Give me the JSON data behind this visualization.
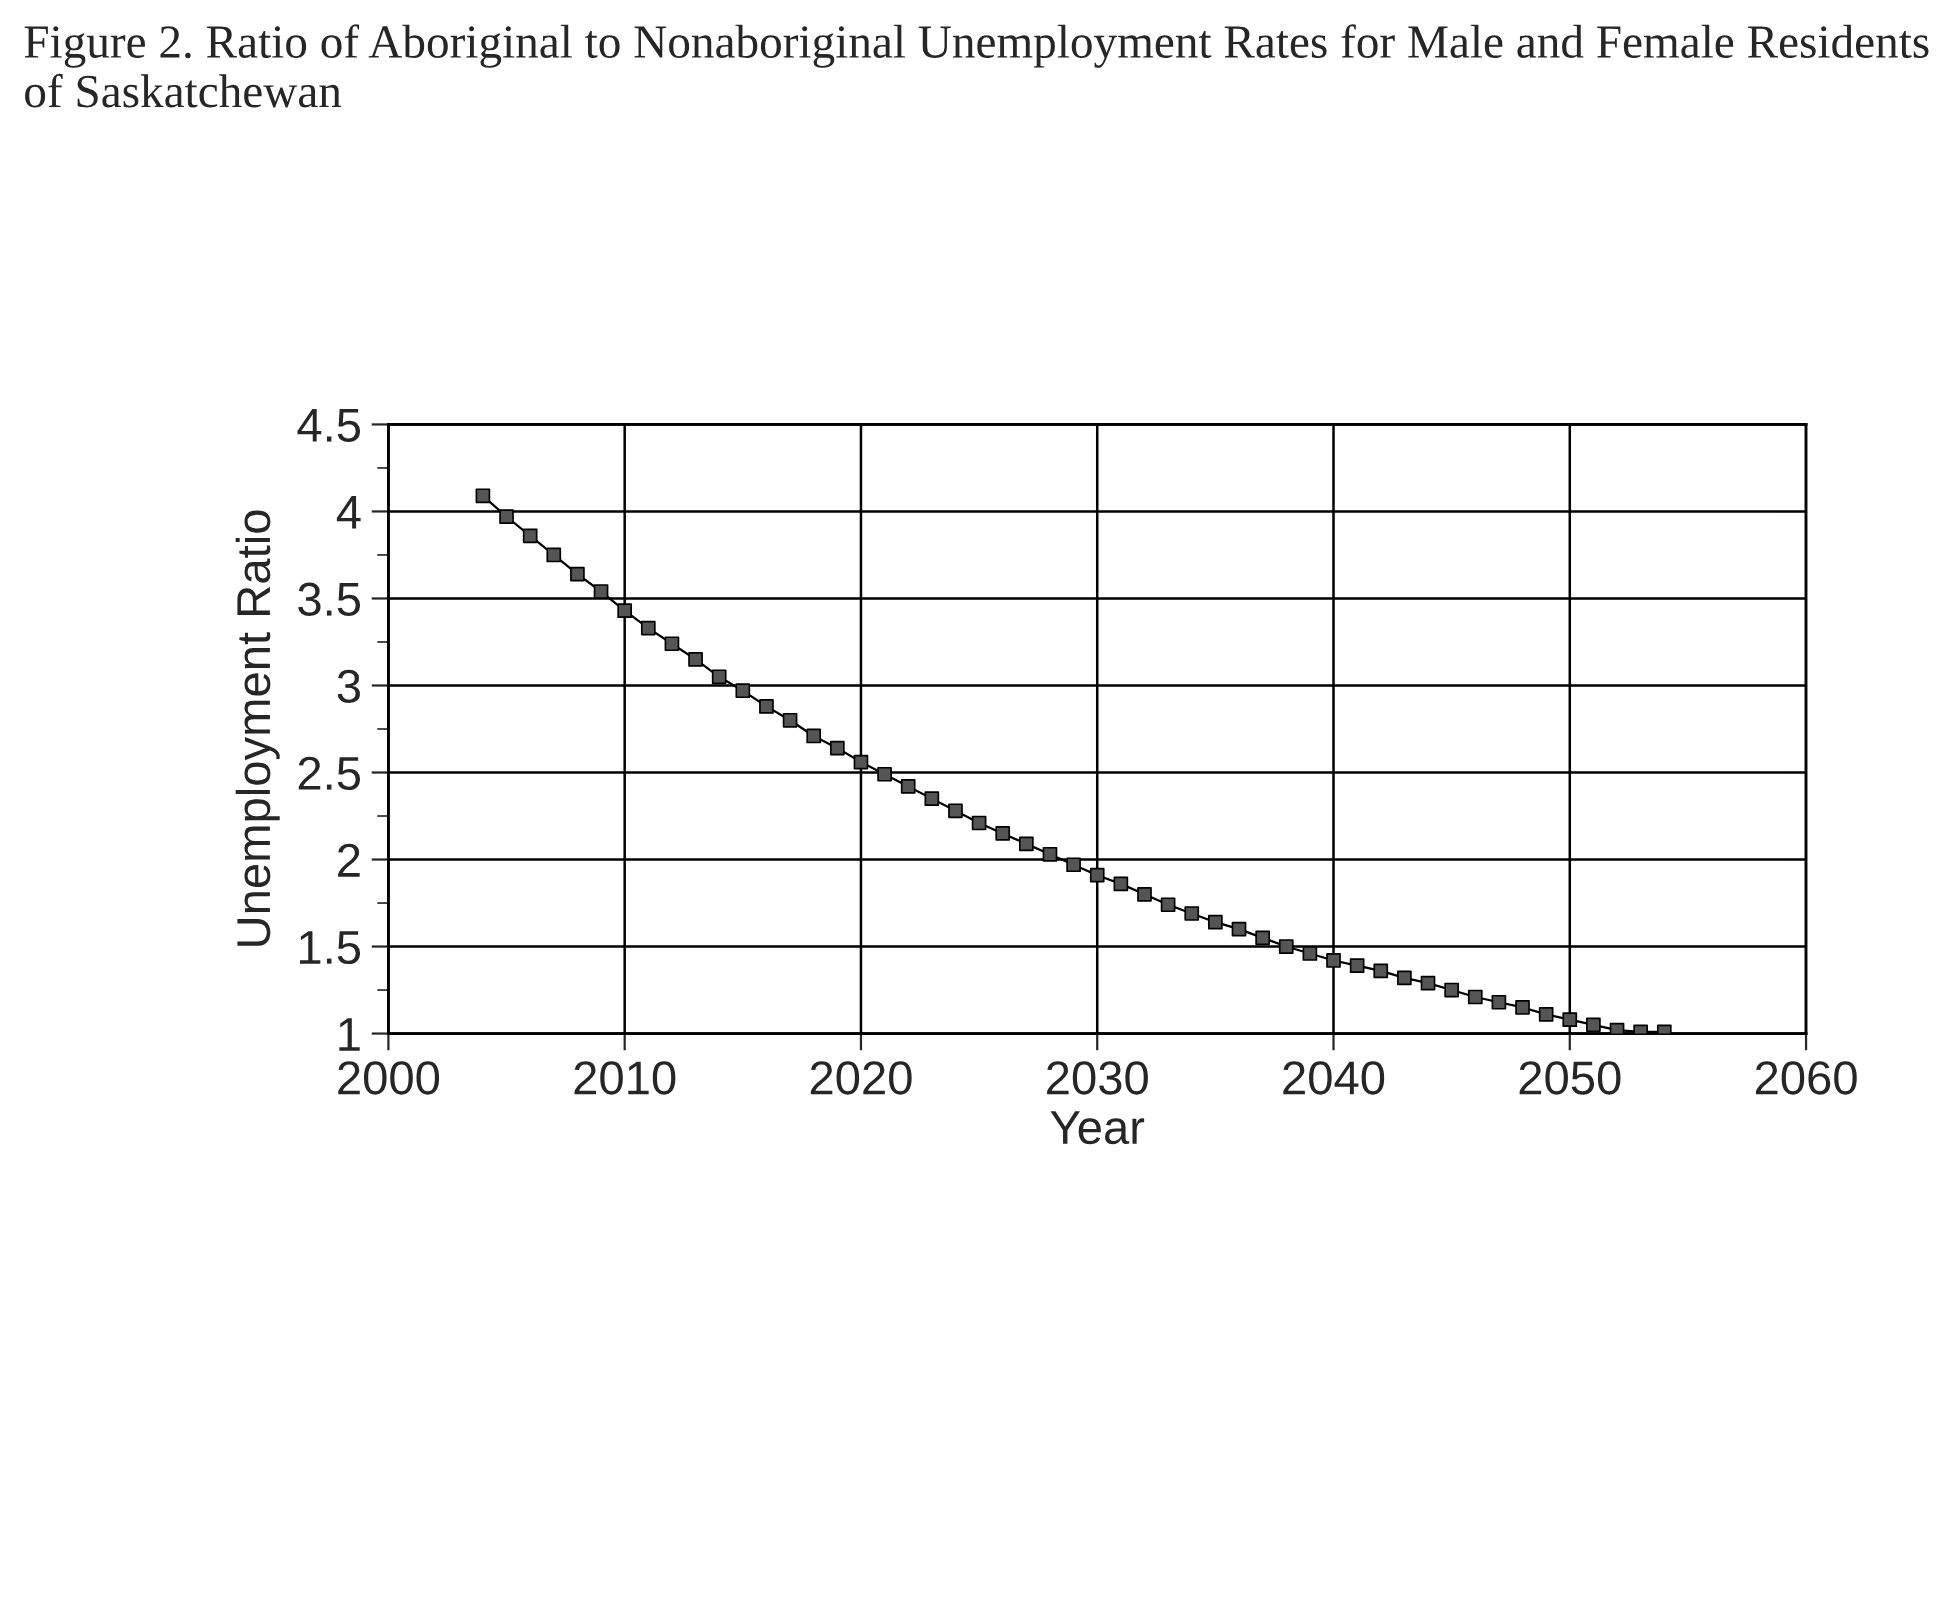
{
  "chart_data": {
    "type": "line",
    "title": "Figure 2. Ratio of Aboriginal to Nonaboriginal Unemployment Rates for Male and Female Residents of Saskatchewan",
    "xlabel": "Year",
    "ylabel": "Unemployment Ratio",
    "x": [
      2004,
      2005,
      2006,
      2007,
      2008,
      2009,
      2010,
      2011,
      2012,
      2013,
      2014,
      2015,
      2016,
      2017,
      2018,
      2019,
      2020,
      2021,
      2022,
      2023,
      2024,
      2025,
      2026,
      2027,
      2028,
      2029,
      2030,
      2031,
      2032,
      2033,
      2034,
      2035,
      2036,
      2037,
      2038,
      2039,
      2040,
      2041,
      2042,
      2043,
      2044,
      2045,
      2046,
      2047,
      2048,
      2049,
      2050,
      2051,
      2052,
      2053,
      2054
    ],
    "series": [
      {
        "color": "#555555",
        "values": [
          4.09,
          3.97,
          3.86,
          3.75,
          3.64,
          3.54,
          3.43,
          3.33,
          3.24,
          3.15,
          3.05,
          2.97,
          2.88,
          2.8,
          2.71,
          2.64,
          2.56,
          2.49,
          2.42,
          2.35,
          2.28,
          2.21,
          2.15,
          2.09,
          2.03,
          1.97,
          1.91,
          1.86,
          1.8,
          1.74,
          1.69,
          1.64,
          1.6,
          1.55,
          1.5,
          1.46,
          1.42,
          1.39,
          1.36,
          1.32,
          1.29,
          1.25,
          1.21,
          1.18,
          1.15,
          1.11,
          1.08,
          1.05,
          1.02,
          1.01,
          1.01
        ]
      }
    ],
    "xlim": [
      2000,
      2060
    ],
    "xticks": [
      2000,
      2010,
      2020,
      2030,
      2040,
      2050,
      2060
    ],
    "ylim": [
      1,
      4.5
    ],
    "yticks": [
      1,
      {
        "value": 1.5,
        "label": "1.5"
      },
      2,
      {
        "value": 2.5,
        "label": "2.5"
      },
      3,
      {
        "value": 3.5,
        "label": "3.5"
      },
      4,
      {
        "value": 4.5,
        "label": "4.5"
      }
    ],
    "grid": true,
    "marker": "square",
    "line_style": "solid"
  }
}
